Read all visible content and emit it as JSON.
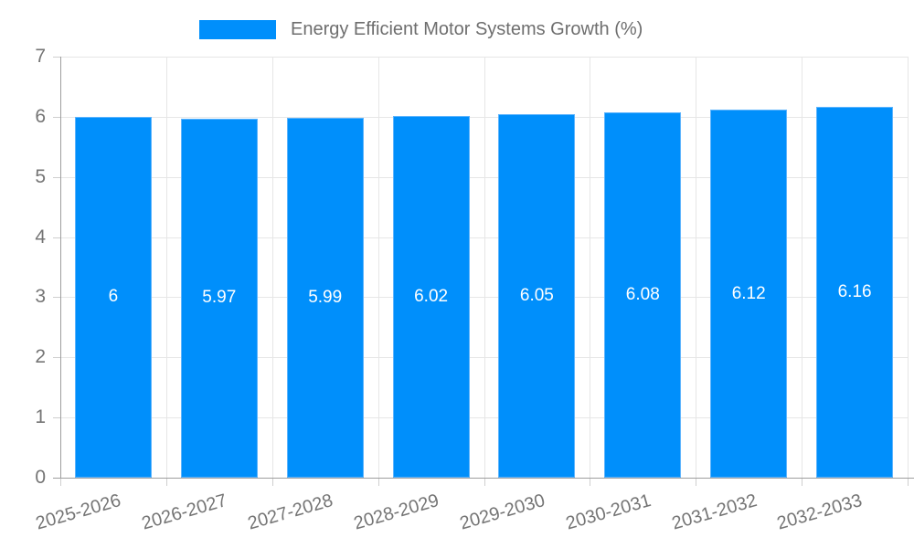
{
  "legend": {
    "label": "Energy Efficient Motor Systems Growth (%)"
  },
  "chart_data": {
    "type": "bar",
    "title": "Energy Efficient Motor Systems Growth (%)",
    "categories": [
      "2025-2026",
      "2026-2027",
      "2027-2028",
      "2028-2029",
      "2029-2030",
      "2030-2031",
      "2031-2032",
      "2032-2033"
    ],
    "values": [
      6,
      5.97,
      5.99,
      6.02,
      6.05,
      6.08,
      6.12,
      6.16
    ],
    "bar_labels": [
      "6",
      "5.97",
      "5.99",
      "6.02",
      "6.05",
      "6.08",
      "6.12",
      "6.16"
    ],
    "xlabel": "",
    "ylabel": "",
    "ylim": [
      0,
      7
    ],
    "yticks": [
      0,
      1,
      2,
      3,
      4,
      5,
      6,
      7
    ],
    "grid": true,
    "legend_position": "top-center",
    "colors": {
      "bar": "#008FFB",
      "bar_edge": "#5db4fd",
      "bar_label": "#ffffff",
      "legend_text": "#6e6e6e",
      "axis_text": "#757575",
      "grid_line": "#e6e6e6",
      "axis_line": "#9e9e9e",
      "tick_line": "#cfcfcf"
    }
  }
}
